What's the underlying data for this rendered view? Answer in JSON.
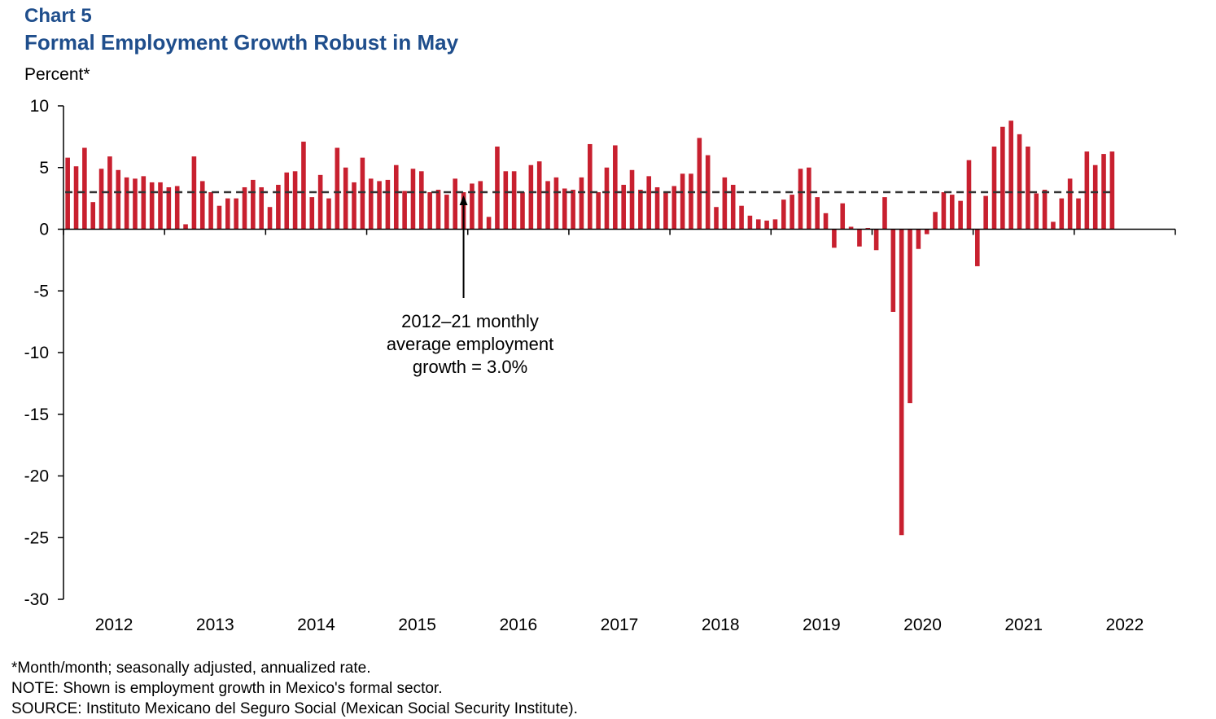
{
  "header": {
    "chart_label": "Chart 5",
    "title": "Formal Employment Growth Robust in May",
    "y_unit": "Percent*"
  },
  "notes": {
    "footnote": "*Month/month; seasonally adjusted, annualized rate.",
    "note": "NOTE: Shown is employment growth in Mexico's formal sector.",
    "source": "SOURCE: Instituto Mexicano del Seguro Social (Mexican Social Security Institute)."
  },
  "colors": {
    "bar": "#c8202f",
    "reference_line": "#333333",
    "axis": "#000000",
    "title": "#1f4e8c"
  },
  "chart_data": {
    "type": "bar",
    "title": "Formal Employment Growth Robust in May",
    "ylabel": "Percent*",
    "xlabel": "",
    "ylim": [
      -30,
      10
    ],
    "yticks": [
      10,
      5,
      0,
      -5,
      -10,
      -15,
      -20,
      -25,
      -30
    ],
    "ytick_labels": [
      "10",
      "5",
      "0",
      "-5",
      "-10",
      "-15",
      "-20",
      "-25",
      "-30"
    ],
    "x_start": "2012-01",
    "x_end": "2022-12",
    "year_labels": [
      "2012",
      "2013",
      "2014",
      "2015",
      "2016",
      "2017",
      "2018",
      "2019",
      "2020",
      "2021",
      "2022"
    ],
    "series": [
      {
        "name": "Formal employment growth",
        "values": [
          5.8,
          5.1,
          6.6,
          2.2,
          4.9,
          5.9,
          4.8,
          4.2,
          4.1,
          4.3,
          3.8,
          3.8,
          3.4,
          3.5,
          0.4,
          5.9,
          3.9,
          3.0,
          1.9,
          2.5,
          2.5,
          3.4,
          4.0,
          3.4,
          1.8,
          3.6,
          4.6,
          4.7,
          7.1,
          2.6,
          4.4,
          2.5,
          6.6,
          5.0,
          3.8,
          5.8,
          4.1,
          3.9,
          4.0,
          5.2,
          3.1,
          4.9,
          4.7,
          3.0,
          3.2,
          2.8,
          4.1,
          3.0,
          3.7,
          3.9,
          1.0,
          6.7,
          4.7,
          4.7,
          3.0,
          5.2,
          5.5,
          3.9,
          4.2,
          3.3,
          3.2,
          4.2,
          6.9,
          3.0,
          5.0,
          6.8,
          3.6,
          4.8,
          3.2,
          4.3,
          3.4,
          3.0,
          3.5,
          4.5,
          4.5,
          7.4,
          6.0,
          1.8,
          4.2,
          3.6,
          1.9,
          1.1,
          0.8,
          0.7,
          0.8,
          2.4,
          2.8,
          4.9,
          5.0,
          2.6,
          1.3,
          -1.5,
          2.1,
          0.2,
          -1.4,
          0.1,
          -1.7,
          2.6,
          -6.7,
          -24.8,
          -14.1,
          -1.6,
          -0.4,
          1.4,
          3.0,
          2.8,
          2.3,
          5.6,
          -3.0,
          2.7,
          6.7,
          8.3,
          8.8,
          7.7,
          6.7,
          2.9,
          3.2,
          0.6,
          2.5,
          4.1,
          2.5,
          6.3,
          5.2,
          6.1,
          6.3
        ]
      }
    ],
    "reference_line": {
      "value": 3.0,
      "style": "dashed"
    },
    "annotation": {
      "lines": [
        "2012–21 monthly",
        "average employment",
        "growth = 3.0%"
      ],
      "points_to_date": "2015-12"
    }
  }
}
